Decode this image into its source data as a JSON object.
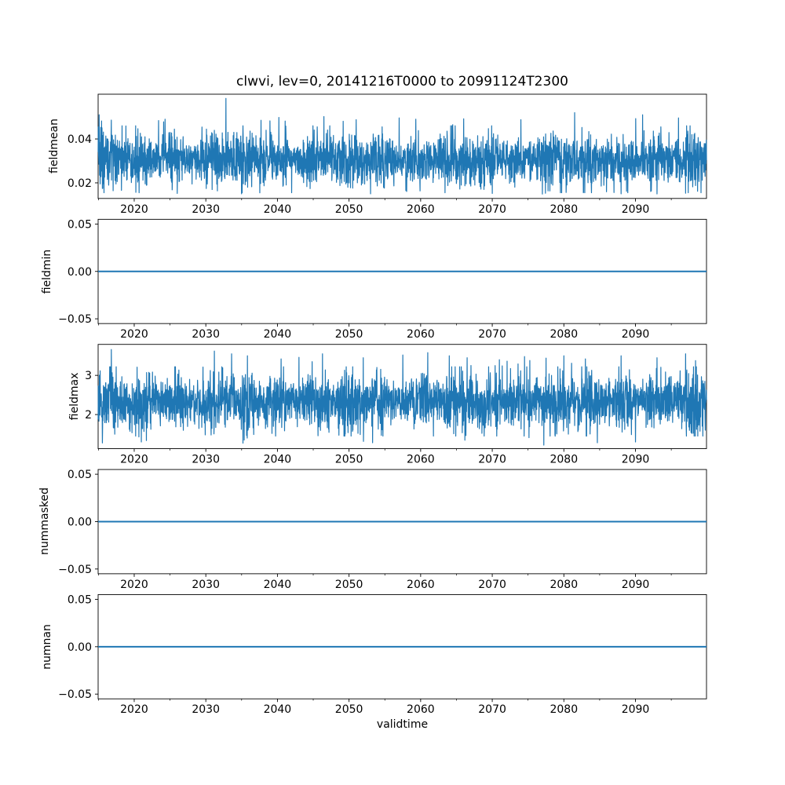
{
  "chart_data": {
    "type": "line",
    "title": "clwvi, lev=0, 20141216T0000 to 20991124T2300",
    "xlabel": "validtime",
    "line_color": "#1f77b4",
    "axis_color": "#000000",
    "grid": false,
    "legend": "none",
    "x_axis": {
      "range": [
        2014.96,
        2099.92
      ],
      "major_ticks": [
        2020,
        2030,
        2040,
        2050,
        2060,
        2070,
        2080,
        2090
      ],
      "tick_labels": [
        "2020",
        "2030",
        "2040",
        "2050",
        "2060",
        "2070",
        "2080",
        "2090"
      ],
      "minor_ticks": [
        2015,
        2025,
        2035,
        2045,
        2055,
        2065,
        2075,
        2085,
        2095
      ]
    },
    "subplots": [
      {
        "name": "fieldmean",
        "ylabel": "fieldmean",
        "ylim": [
          0.0129,
          0.0604
        ],
        "yticks": [
          {
            "value": 0.02,
            "label": "0.02"
          },
          {
            "value": 0.04,
            "label": "0.04"
          }
        ],
        "series": {
          "kind": "noise",
          "description": "dense high-frequency time series band between ~0.015 and ~0.05",
          "n": 3000,
          "seed": 12345,
          "mean": 0.0305,
          "std": 0.0056,
          "clip": [
            0.0155,
            0.046
          ],
          "peak_prob": 0.006,
          "peak_range": [
            0.045,
            0.05
          ],
          "dip_prob": 0.004,
          "dip_range": [
            0.0149,
            0.017
          ],
          "spikes": [
            [
              2015.1,
              0.051
            ],
            [
              2024.3,
              0.049
            ],
            [
              2032.8,
              0.0585
            ],
            [
              2040.2,
              0.0498
            ],
            [
              2046.5,
              0.0502
            ],
            [
              2051.0,
              0.0488
            ],
            [
              2057.0,
              0.0496
            ],
            [
              2066.0,
              0.0492
            ],
            [
              2074.0,
              0.0488
            ],
            [
              2081.5,
              0.052
            ],
            [
              2091.0,
              0.051
            ],
            [
              2096.0,
              0.0496
            ],
            [
              2026.0,
              0.0152
            ],
            [
              2035.0,
              0.015
            ],
            [
              2042.0,
              0.0155
            ],
            [
              2053.0,
              0.015
            ],
            [
              2070.0,
              0.0152
            ],
            [
              2077.0,
              0.0149
            ],
            [
              2088.0,
              0.015
            ],
            [
              2097.0,
              0.0153
            ]
          ]
        }
      },
      {
        "name": "fieldmin",
        "ylabel": "fieldmin",
        "ylim": [
          -0.055,
          0.055
        ],
        "yticks": [
          {
            "value": 0.05,
            "label": "0.05"
          },
          {
            "value": 0.0,
            "label": "0.00"
          },
          {
            "value": -0.05,
            "label": "−0.05"
          }
        ],
        "series": {
          "kind": "flat",
          "value": 0.0,
          "description": "constant zero line"
        }
      },
      {
        "name": "fieldmax",
        "ylabel": "fieldmax",
        "ylim": [
          1.13,
          3.79
        ],
        "yticks": [
          {
            "value": 2,
            "label": "2"
          },
          {
            "value": 3,
            "label": "3"
          }
        ],
        "series": {
          "kind": "noise",
          "description": "dense high-frequency time series band between ~1.3 and ~3.65",
          "n": 3000,
          "seed": 777,
          "mean": 2.33,
          "std": 0.34,
          "clip": [
            1.45,
            3.22
          ],
          "peak_prob": 0.006,
          "peak_range": [
            3.2,
            3.4
          ],
          "dip_prob": 0.006,
          "dip_range": [
            1.27,
            1.5
          ],
          "spikes": [
            [
              2016.8,
              3.66
            ],
            [
              2031.2,
              3.62
            ],
            [
              2033.6,
              3.55
            ],
            [
              2035.8,
              3.5
            ],
            [
              2040.5,
              3.42
            ],
            [
              2043.0,
              3.46
            ],
            [
              2046.3,
              3.55
            ],
            [
              2052.0,
              3.45
            ],
            [
              2057.5,
              3.52
            ],
            [
              2061.0,
              3.58
            ],
            [
              2064.0,
              3.5
            ],
            [
              2066.5,
              3.45
            ],
            [
              2071.0,
              3.4
            ],
            [
              2074.5,
              3.48
            ],
            [
              2077.5,
              3.44
            ],
            [
              2080.0,
              3.5
            ],
            [
              2083.0,
              3.42
            ],
            [
              2088.0,
              3.5
            ],
            [
              2093.0,
              3.45
            ],
            [
              2097.0,
              3.55
            ],
            [
              2021.0,
              1.3
            ],
            [
              2035.2,
              1.27
            ],
            [
              2053.3,
              1.28
            ],
            [
              2077.2,
              1.22
            ],
            [
              2090.0,
              1.3
            ]
          ]
        }
      },
      {
        "name": "nummasked",
        "ylabel": "nummasked",
        "ylim": [
          -0.055,
          0.055
        ],
        "yticks": [
          {
            "value": 0.05,
            "label": "0.05"
          },
          {
            "value": 0.0,
            "label": "0.00"
          },
          {
            "value": -0.05,
            "label": "−0.05"
          }
        ],
        "series": {
          "kind": "flat",
          "value": 0.0,
          "description": "constant zero line"
        }
      },
      {
        "name": "numnan",
        "ylabel": "numnan",
        "ylim": [
          -0.055,
          0.055
        ],
        "yticks": [
          {
            "value": 0.05,
            "label": "0.05"
          },
          {
            "value": 0.0,
            "label": "0.00"
          },
          {
            "value": -0.05,
            "label": "−0.05"
          }
        ],
        "series": {
          "kind": "flat",
          "value": 0.0,
          "description": "constant zero line"
        }
      }
    ]
  }
}
